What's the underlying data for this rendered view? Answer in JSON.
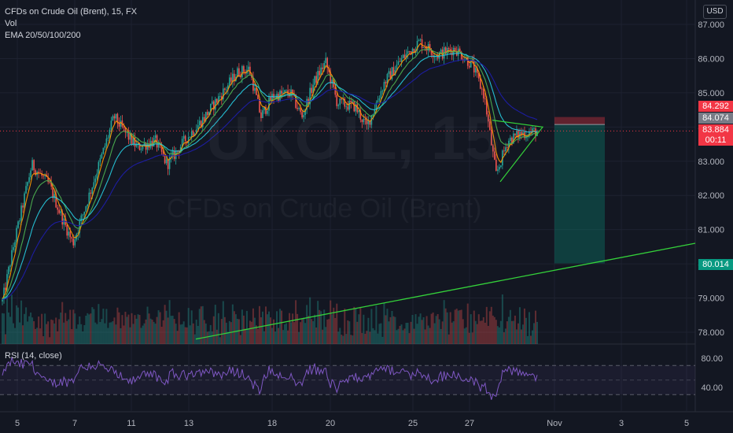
{
  "header": {
    "symbol_title": "CFDs on Crude Oil (Brent), 15, FX",
    "vol_label": "Vol",
    "ema_label": "EMA 20/50/100/200",
    "currency": "USD"
  },
  "watermark": {
    "ticker": "UKOIL, 15",
    "name": "CFDs on Crude Oil (Brent)"
  },
  "rsi": {
    "label": "RSI (14, close)",
    "ticks": [
      "80.00",
      "40.00"
    ]
  },
  "price_tags": {
    "stop": "84.292",
    "entry": "84.074",
    "last": "83.884",
    "countdown": "00:11",
    "target": "80.014"
  },
  "colors": {
    "background": "#131722",
    "candle_up": "#26a69a",
    "candle_down": "#ef5350",
    "ema20": "#ff9800",
    "ema50": "#4caf50",
    "ema100": "#26c6da",
    "ema200": "#1e1ea8",
    "trendline": "#34d13a",
    "rsi_line": "#7e57c2"
  },
  "chart_data": [
    {
      "type": "candlestick",
      "title": "CFDs on Crude Oil (Brent), 15, FX",
      "x_tick_labels": [
        "5",
        "7",
        "11",
        "13",
        "18",
        "20",
        "25",
        "27",
        "Nov",
        "3",
        "5"
      ],
      "y_tick_labels": [
        "87.000",
        "86.000",
        "85.000",
        "84.000",
        "83.000",
        "82.000",
        "81.000",
        "80.000",
        "79.000",
        "78.000"
      ],
      "ylim": [
        77.8,
        87.3
      ],
      "price_path_approx": [
        [
          0,
          78.9
        ],
        [
          0.02,
          80.6
        ],
        [
          0.05,
          82.9
        ],
        [
          0.08,
          82.3
        ],
        [
          0.1,
          81.4
        ],
        [
          0.12,
          80.6
        ],
        [
          0.14,
          81.6
        ],
        [
          0.17,
          83.2
        ],
        [
          0.19,
          84.3
        ],
        [
          0.21,
          83.8
        ],
        [
          0.23,
          83.4
        ],
        [
          0.26,
          83.6
        ],
        [
          0.28,
          82.9
        ],
        [
          0.31,
          83.6
        ],
        [
          0.34,
          84.2
        ],
        [
          0.37,
          84.9
        ],
        [
          0.4,
          85.6
        ],
        [
          0.42,
          85.7
        ],
        [
          0.44,
          84.3
        ],
        [
          0.46,
          84.9
        ],
        [
          0.49,
          85.0
        ],
        [
          0.51,
          84.3
        ],
        [
          0.53,
          85.3
        ],
        [
          0.55,
          85.9
        ],
        [
          0.57,
          84.7
        ],
        [
          0.6,
          84.6
        ],
        [
          0.62,
          84.0
        ],
        [
          0.65,
          85.3
        ],
        [
          0.68,
          86.0
        ],
        [
          0.71,
          86.5
        ],
        [
          0.74,
          86.1
        ],
        [
          0.77,
          86.3
        ],
        [
          0.8,
          85.8
        ],
        [
          0.82,
          84.9
        ],
        [
          0.84,
          82.6
        ],
        [
          0.86,
          83.6
        ],
        [
          0.88,
          83.8
        ],
        [
          0.91,
          83.88
        ]
      ],
      "emas": [
        "EMA 20",
        "EMA 50",
        "EMA 100",
        "EMA 200"
      ],
      "volume_series": "Vol",
      "short_position": {
        "stop": 84.292,
        "entry": 84.074,
        "target": 80.014
      },
      "triangle": {
        "upper_left": 84.2,
        "lower_left": 82.4,
        "apex": 84.0
      },
      "trendline": {
        "start_label_x": "13",
        "start_price": 77.8,
        "end_price": 80.6
      }
    },
    {
      "type": "line",
      "title": "RSI (14, close)",
      "y_tick_labels": [
        "80.00",
        "40.00"
      ],
      "ylim": [
        20,
        90
      ],
      "bands": [
        70,
        50,
        30
      ]
    }
  ]
}
